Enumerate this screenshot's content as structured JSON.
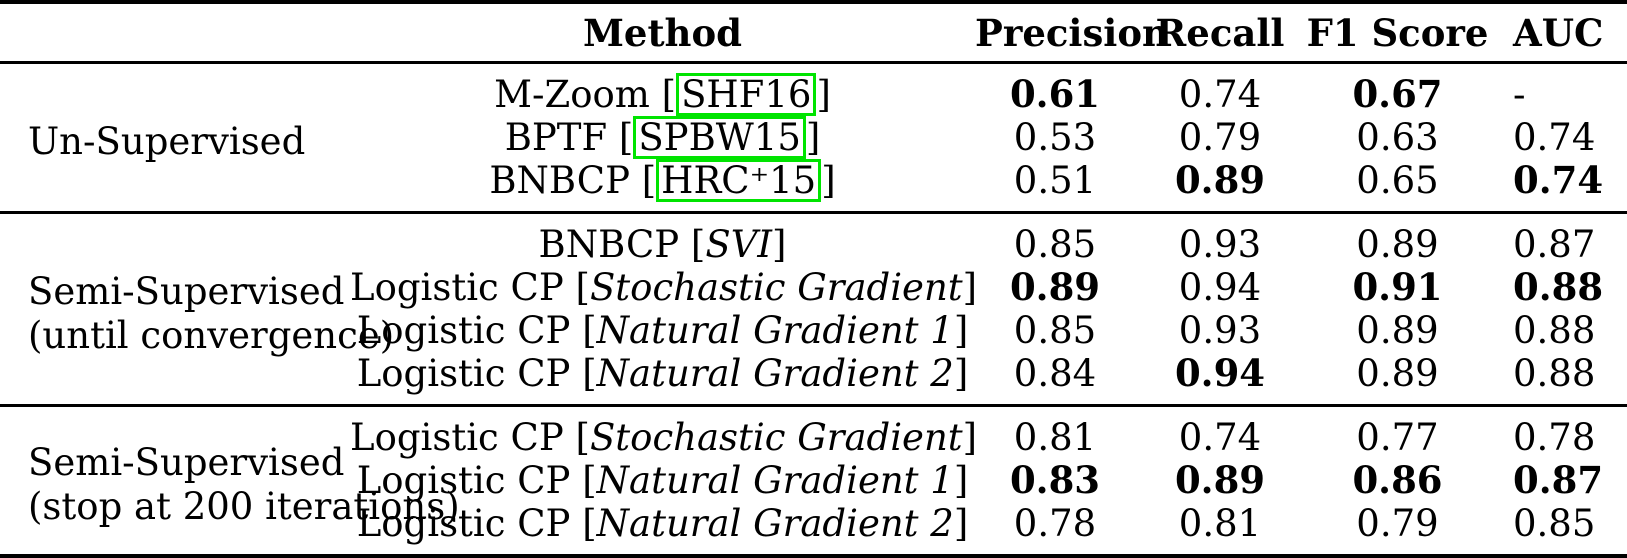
{
  "table": {
    "citation_box_color": "#00e400",
    "headers": [
      {
        "label": "Method"
      },
      {
        "label": "Precision"
      },
      {
        "label": "Recall"
      },
      {
        "label": "F1 Score"
      },
      {
        "label": "AUC"
      }
    ],
    "groups": [
      {
        "label_lines": [
          "Un-Supervised"
        ],
        "rows": [
          {
            "method": "M-Zoom",
            "bracket": "SHF16",
            "bracket_kind": "citation",
            "values": [
              {
                "text": "0.61",
                "bold": true
              },
              {
                "text": "0.74",
                "bold": false
              },
              {
                "text": "0.67",
                "bold": true
              },
              {
                "text": "-",
                "bold": false
              }
            ]
          },
          {
            "method": "BPTF",
            "bracket": "SPBW15",
            "bracket_kind": "citation",
            "values": [
              {
                "text": "0.53",
                "bold": false
              },
              {
                "text": "0.79",
                "bold": false
              },
              {
                "text": "0.63",
                "bold": false
              },
              {
                "text": "0.74",
                "bold": false
              }
            ]
          },
          {
            "method": "BNBCP",
            "bracket": "HRC⁺15",
            "bracket_kind": "citation",
            "values": [
              {
                "text": "0.51",
                "bold": false
              },
              {
                "text": "0.89",
                "bold": true
              },
              {
                "text": "0.65",
                "bold": false
              },
              {
                "text": "0.74",
                "bold": true
              }
            ]
          }
        ]
      },
      {
        "label_lines": [
          "Semi-Supervised",
          "(until convergence)"
        ],
        "rows": [
          {
            "method": "BNBCP",
            "bracket": "SVI",
            "bracket_kind": "variant",
            "values": [
              {
                "text": "0.85",
                "bold": false
              },
              {
                "text": "0.93",
                "bold": false
              },
              {
                "text": "0.89",
                "bold": false
              },
              {
                "text": "0.87",
                "bold": false
              }
            ]
          },
          {
            "method": "Logistic CP",
            "bracket": "Stochastic Gradient",
            "bracket_kind": "variant",
            "values": [
              {
                "text": "0.89",
                "bold": true
              },
              {
                "text": "0.94",
                "bold": false
              },
              {
                "text": "0.91",
                "bold": true
              },
              {
                "text": "0.88",
                "bold": true
              }
            ]
          },
          {
            "method": "Logistic CP",
            "bracket": "Natural Gradient 1",
            "bracket_kind": "variant",
            "values": [
              {
                "text": "0.85",
                "bold": false
              },
              {
                "text": "0.93",
                "bold": false
              },
              {
                "text": "0.89",
                "bold": false
              },
              {
                "text": "0.88",
                "bold": false
              }
            ]
          },
          {
            "method": "Logistic CP",
            "bracket": "Natural Gradient 2",
            "bracket_kind": "variant",
            "values": [
              {
                "text": "0.84",
                "bold": false
              },
              {
                "text": "0.94",
                "bold": true
              },
              {
                "text": "0.89",
                "bold": false
              },
              {
                "text": "0.88",
                "bold": false
              }
            ]
          }
        ]
      },
      {
        "label_lines": [
          "Semi-Supervised",
          "(stop at 200 iterations)"
        ],
        "rows": [
          {
            "method": "Logistic CP",
            "bracket": "Stochastic Gradient",
            "bracket_kind": "variant",
            "values": [
              {
                "text": "0.81",
                "bold": false
              },
              {
                "text": "0.74",
                "bold": false
              },
              {
                "text": "0.77",
                "bold": false
              },
              {
                "text": "0.78",
                "bold": false
              }
            ]
          },
          {
            "method": "Logistic CP",
            "bracket": "Natural Gradient 1",
            "bracket_kind": "variant",
            "values": [
              {
                "text": "0.83",
                "bold": true
              },
              {
                "text": "0.89",
                "bold": true
              },
              {
                "text": "0.86",
                "bold": true
              },
              {
                "text": "0.87",
                "bold": true
              }
            ]
          },
          {
            "method": "Logistic CP",
            "bracket": "Natural Gradient 2",
            "bracket_kind": "variant",
            "values": [
              {
                "text": "0.78",
                "bold": false
              },
              {
                "text": "0.81",
                "bold": false
              },
              {
                "text": "0.79",
                "bold": false
              },
              {
                "text": "0.85",
                "bold": false
              }
            ]
          }
        ]
      }
    ]
  }
}
